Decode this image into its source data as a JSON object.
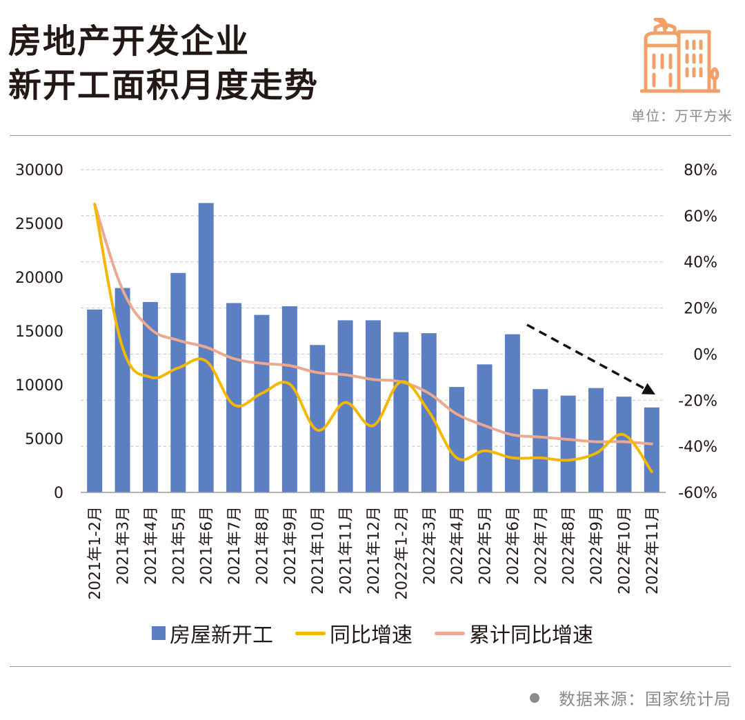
{
  "header": {
    "title_line1": "房地产开发企业",
    "title_line2": "新开工面积月度走势",
    "unit_text": "单位：万平方米"
  },
  "footer": {
    "source_text": "数据来源：国家统计局"
  },
  "colors": {
    "bar": "#5b7fc0",
    "yoy_line": "#f5b800",
    "cum_line": "#eda890",
    "logo": "#f0a068",
    "text": "#231815",
    "muted": "#8a8a8a",
    "grid": "#bfbfbf"
  },
  "icons": {
    "logo": "building-icon",
    "footer": "bullet-icon",
    "trend": "dashed-arrow-icon"
  },
  "chart_data": {
    "type": "bar",
    "title": "",
    "xlabel": "",
    "ylabel": "",
    "categories": [
      "2021年1-2月",
      "2021年3月",
      "2021年4月",
      "2021年5月",
      "2021年6月",
      "2021年7月",
      "2021年8月",
      "2021年9月",
      "2021年10月",
      "2021年11月",
      "2021年12月",
      "2022年1-2月",
      "2022年3月",
      "2022年4月",
      "2022年5月",
      "2022年6月",
      "2022年7月",
      "2022年8月",
      "2022年9月",
      "2022年10月",
      "2022年11月"
    ],
    "series": [
      {
        "name": "房屋新开工",
        "type": "bar",
        "axis": "left",
        "values": [
          17000,
          19000,
          17700,
          20400,
          26900,
          17600,
          16500,
          17300,
          13700,
          16000,
          16000,
          14900,
          14800,
          9800,
          11900,
          14700,
          9600,
          9000,
          9700,
          8900,
          7900
        ]
      },
      {
        "name": "同比增速",
        "type": "line",
        "axis": "right",
        "values": [
          65,
          3,
          -10,
          -6,
          -3,
          -22,
          -17,
          -13,
          -33,
          -21,
          -31,
          -12,
          -25,
          -45,
          -42,
          -45,
          -45,
          -46,
          -43,
          -35,
          -51
        ]
      },
      {
        "name": "累计同比增速",
        "type": "line",
        "axis": "right",
        "values": [
          65,
          28,
          11,
          6,
          3,
          -2,
          -4,
          -5,
          -8,
          -9,
          -11,
          -12,
          -17,
          -26,
          -31,
          -35,
          -36,
          -37,
          -38,
          -38,
          -39
        ]
      }
    ],
    "y_left": {
      "min": 0,
      "max": 30000,
      "ticks": [
        "0",
        "5000",
        "10000",
        "15000",
        "20000",
        "25000",
        "30000"
      ]
    },
    "y_right": {
      "min": -60,
      "max": 80,
      "ticks": [
        "-60%",
        "-40%",
        "-20%",
        "0%",
        "20%",
        "40%",
        "60%",
        "80%"
      ]
    },
    "grid": true,
    "legend": "bottom",
    "annotation": "dashed downward arrow from 2022年6月 to 2022年11月"
  }
}
